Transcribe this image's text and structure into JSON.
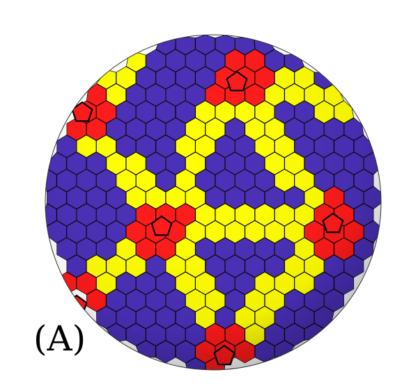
{
  "figure": {
    "panel_label": "(A)",
    "colors": {
      "majority": "#4a2fb8",
      "chain": "#ffff00",
      "defect": "#ff1a1a",
      "edge": "#000000",
      "background": "#ffffff"
    },
    "cell_legend": {
      "majority": "hexagon-cell",
      "chain": "hexagon-cell",
      "defect": "pentagon-cell"
    }
  }
}
